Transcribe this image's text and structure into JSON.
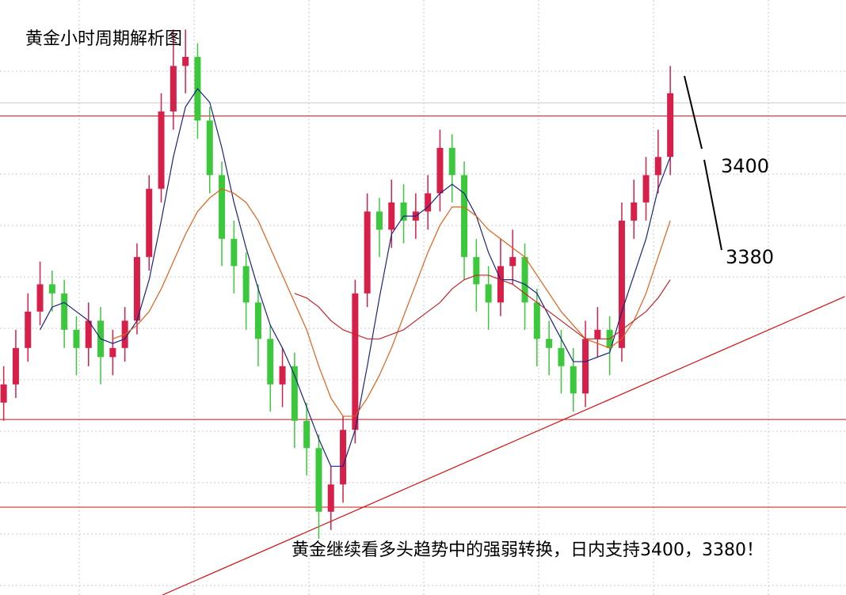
{
  "chart_data": {
    "type": "candlestick",
    "title": "黄金小时周期解析图",
    "annotations": [
      "3400",
      "3380"
    ],
    "caption": "黄金继续看多头趋势中的强弱转换，日内支持3400，3380！",
    "ylim": [
      3305.7,
      3436.5
    ],
    "up_color": "#d6204a",
    "down_color": "#3cc83c",
    "open": [
      3348,
      3352,
      3360,
      3368,
      3374,
      3372,
      3364,
      3360,
      3366,
      3358,
      3360,
      3366,
      3380,
      3395,
      3412,
      3422,
      3424,
      3410,
      3398,
      3384,
      3378,
      3370,
      3362,
      3352,
      3356,
      3344,
      3338,
      3324,
      3330,
      3342,
      3372,
      3390,
      3386,
      3392,
      3388,
      3390,
      3394,
      3404,
      3398,
      3380,
      3374,
      3370,
      3378,
      3380,
      3370,
      3362,
      3360,
      3356,
      3350,
      3362,
      3364,
      3360,
      3388,
      3392,
      3398,
      3402
    ],
    "high": [
      3356,
      3364,
      3372,
      3379,
      3377,
      3375,
      3367,
      3370,
      3369,
      3364,
      3369,
      3383,
      3398,
      3416,
      3430,
      3430,
      3427,
      3413,
      3401,
      3388,
      3381,
      3374,
      3365,
      3360,
      3359,
      3348,
      3341,
      3334,
      3345,
      3375,
      3394,
      3393,
      3397,
      3396,
      3394,
      3398,
      3408,
      3407,
      3401,
      3384,
      3378,
      3384,
      3386,
      3383,
      3373,
      3366,
      3364,
      3360,
      3366,
      3369,
      3367,
      3392,
      3397,
      3402,
      3408,
      3422
    ],
    "low": [
      3344,
      3349,
      3357,
      3365,
      3368,
      3360,
      3354,
      3356,
      3352,
      3354,
      3357,
      3363,
      3377,
      3392,
      3408,
      3416,
      3406,
      3394,
      3378,
      3372,
      3364,
      3356,
      3346,
      3347,
      3338,
      3332,
      3318,
      3320,
      3326,
      3339,
      3369,
      3380,
      3382,
      3383,
      3384,
      3386,
      3390,
      3392,
      3375,
      3368,
      3364,
      3367,
      3374,
      3364,
      3356,
      3354,
      3350,
      3346,
      3347,
      3358,
      3354,
      3357,
      3384,
      3388,
      3394,
      3398
    ],
    "close": [
      3352,
      3360,
      3368,
      3374,
      3372,
      3364,
      3360,
      3366,
      3358,
      3360,
      3366,
      3380,
      3395,
      3412,
      3422,
      3424,
      3410,
      3398,
      3384,
      3378,
      3370,
      3362,
      3352,
      3356,
      3344,
      3338,
      3324,
      3330,
      3342,
      3372,
      3390,
      3386,
      3392,
      3388,
      3390,
      3394,
      3404,
      3398,
      3380,
      3374,
      3370,
      3378,
      3380,
      3370,
      3362,
      3360,
      3356,
      3350,
      3362,
      3364,
      3360,
      3388,
      3392,
      3398,
      3402,
      3416
    ],
    "moving_averages": [
      {
        "color": "#1a237e",
        "values": [
          null,
          null,
          null,
          3364,
          3369,
          3370,
          3368,
          3366,
          3362,
          3361,
          3362,
          3366,
          3375,
          3388,
          3402,
          3413,
          3417,
          3414,
          3404,
          3392,
          3382,
          3373,
          3365,
          3360,
          3354,
          3347,
          3340,
          3334,
          3334,
          3342,
          3356,
          3371,
          3385,
          3389,
          3389,
          3391,
          3394,
          3396,
          3394,
          3389,
          3381,
          3375,
          3375,
          3374,
          3372,
          3367,
          3362,
          3357,
          3357,
          3358,
          3359,
          3368,
          3376,
          3384,
          3395,
          3402
        ]
      },
      {
        "color": "#e0601a",
        "values": [
          null,
          null,
          null,
          null,
          null,
          null,
          null,
          null,
          null,
          3362,
          3363,
          3365,
          3368,
          3373,
          3379,
          3385,
          3390,
          3393,
          3395,
          3394,
          3392,
          3388,
          3382,
          3376,
          3370,
          3364,
          3356,
          3349,
          3345,
          3345,
          3349,
          3354,
          3360,
          3367,
          3374,
          3381,
          3387,
          3391,
          3391,
          3389,
          3386,
          3384,
          3382,
          3380,
          3376,
          3372,
          3368,
          3365,
          3362,
          3361,
          3360,
          3362,
          3366,
          3372,
          3380,
          3388
        ]
      },
      {
        "color": "#c0262a",
        "values": [
          null,
          null,
          null,
          null,
          null,
          null,
          null,
          null,
          null,
          null,
          null,
          null,
          null,
          null,
          null,
          null,
          null,
          null,
          null,
          null,
          null,
          null,
          null,
          null,
          3372,
          3371,
          3369,
          3366,
          3364,
          3363,
          3362,
          3362,
          3363,
          3364,
          3366,
          3368,
          3370,
          3373,
          3375,
          3376,
          3376,
          3375,
          3374,
          3372,
          3370,
          3368,
          3366,
          3364,
          3362,
          3362,
          3362,
          3364,
          3366,
          3368,
          3371,
          3375
        ]
      }
    ],
    "levels": [
      3411,
      3344.3,
      3325
    ],
    "level_color": "#d01010",
    "trendline": {
      "x": [
        13.1,
        69.4
      ],
      "y": [
        3305.7,
        3371.3
      ],
      "color": "#d01010"
    }
  }
}
